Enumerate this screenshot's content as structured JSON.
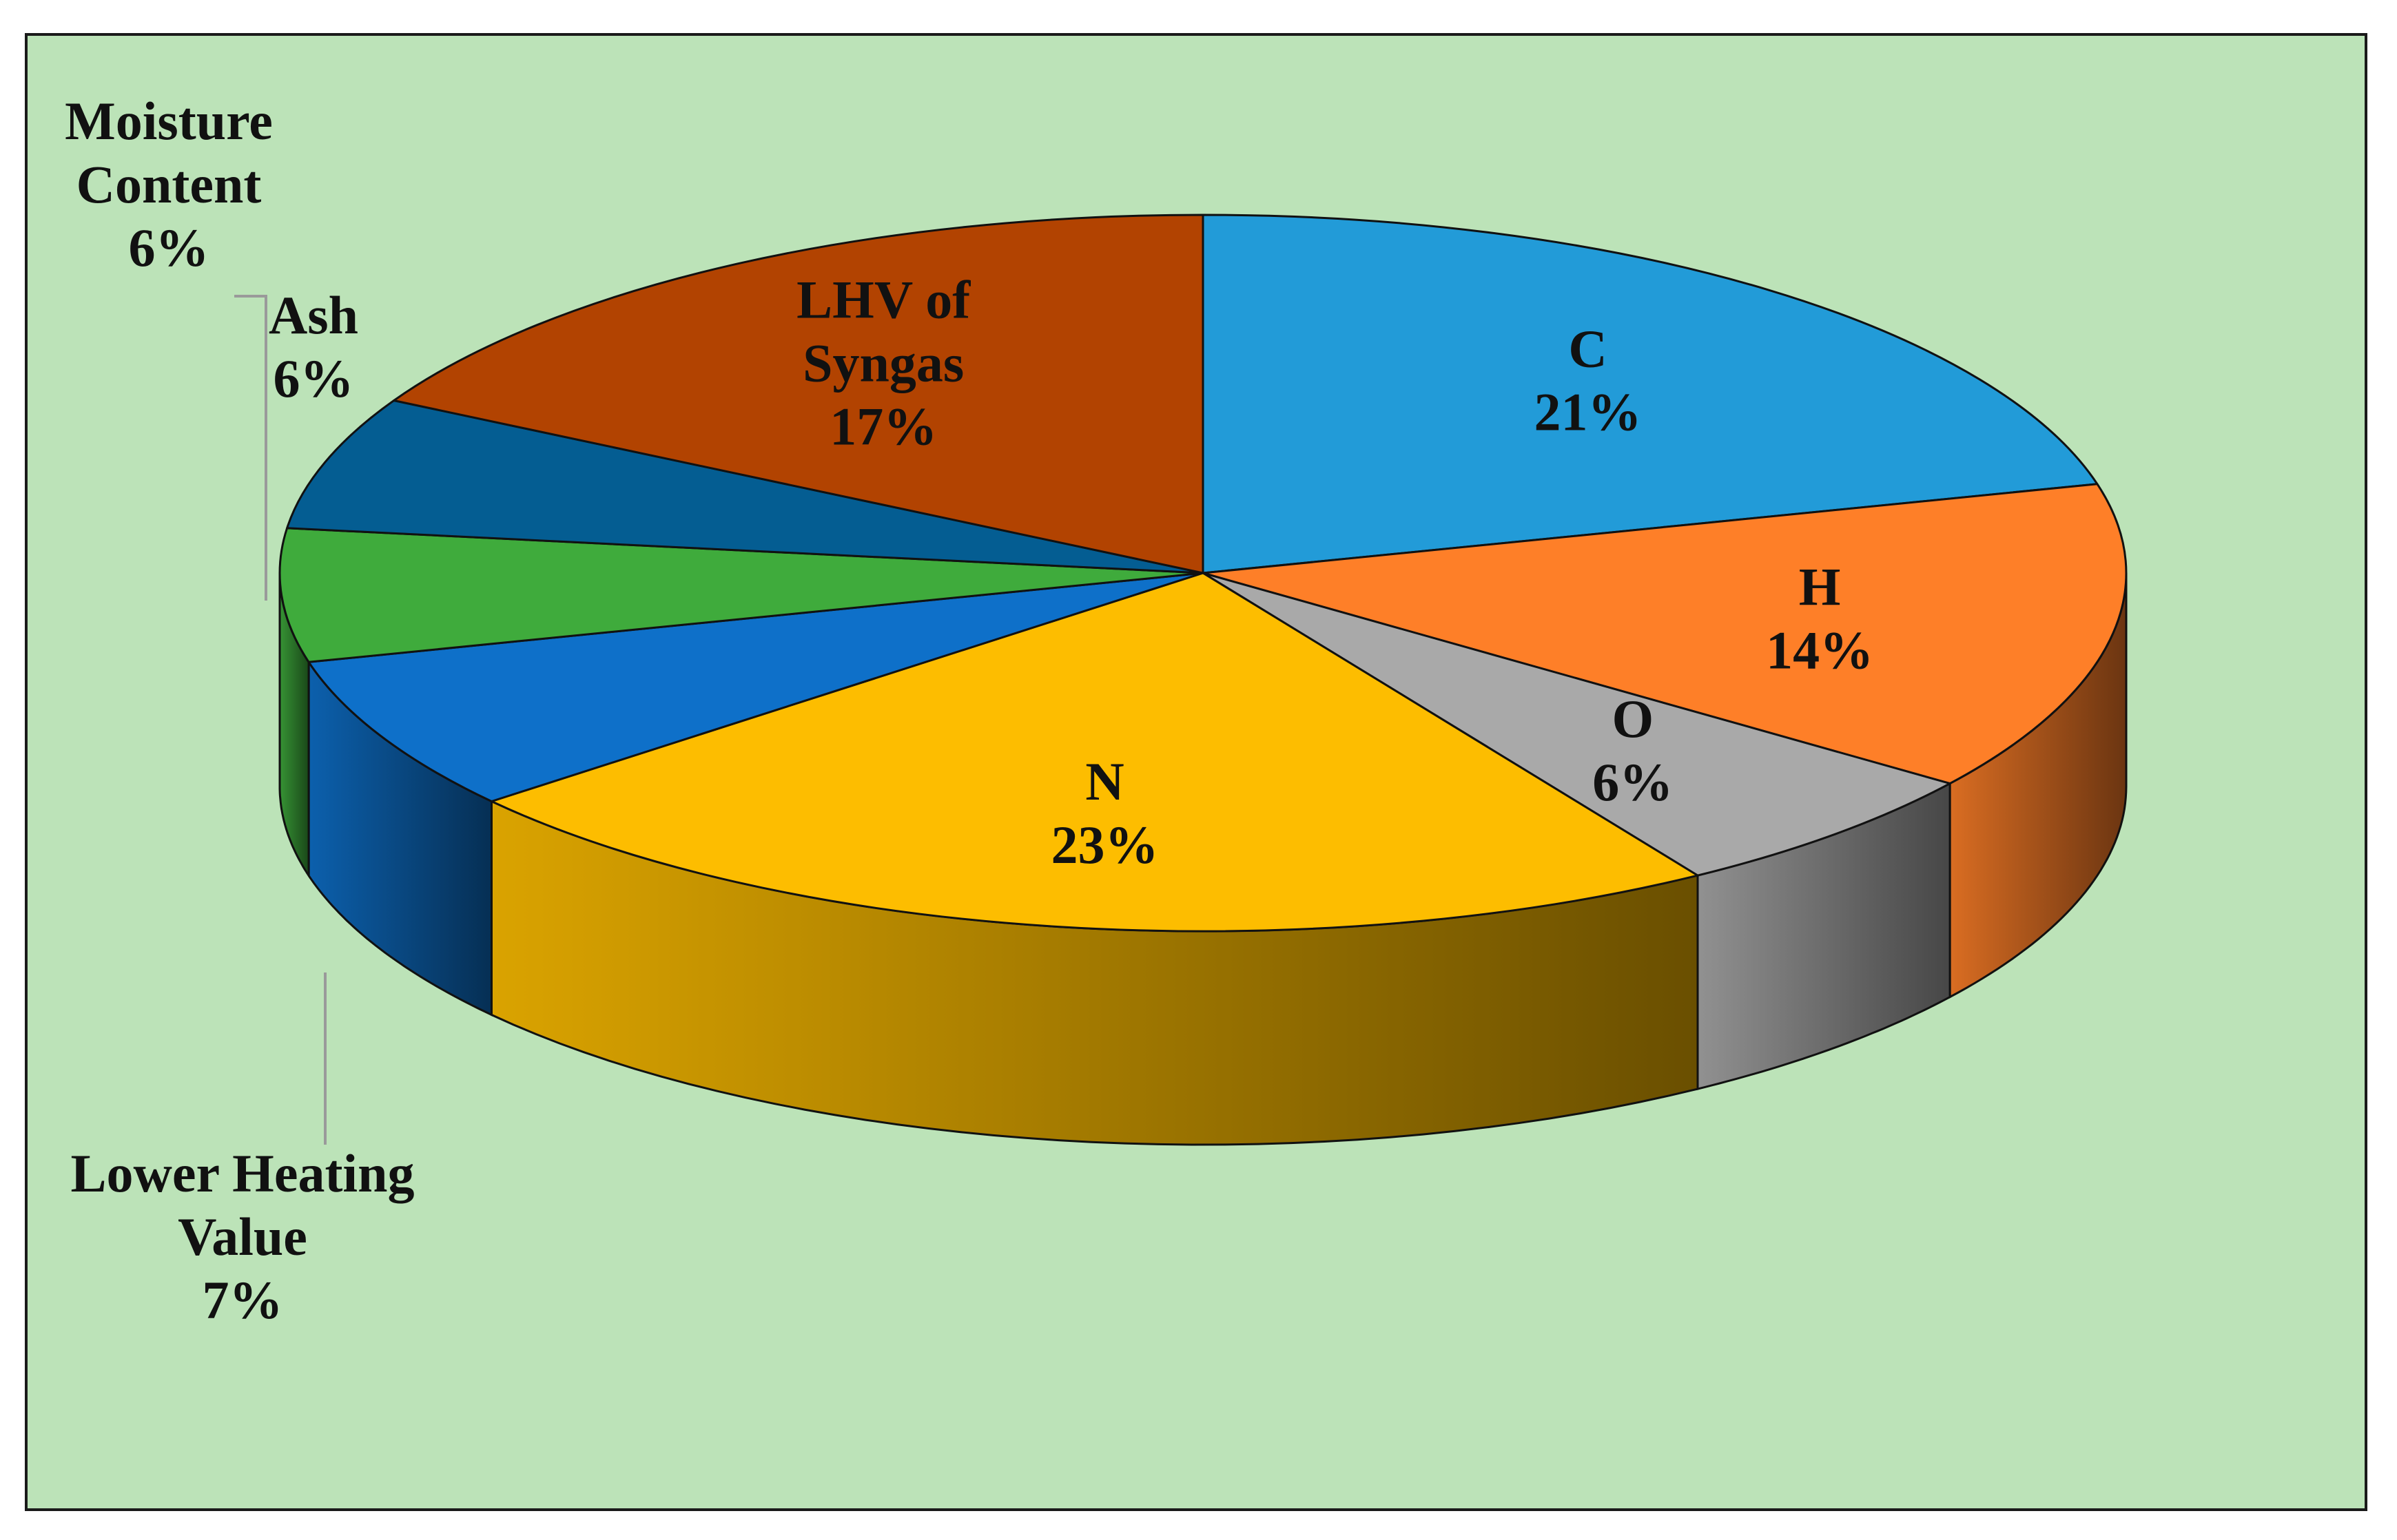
{
  "chart_data": {
    "type": "pie",
    "style": "3d",
    "title": "",
    "legend": "none",
    "categories": [
      "C",
      "H",
      "O",
      "N",
      "Lower Heating Value",
      "Moisture Content",
      "Ash",
      "LHV of Syngas"
    ],
    "values": [
      21,
      14,
      6,
      23,
      7,
      6,
      6,
      17
    ],
    "slices": [
      {
        "name": "C",
        "value": 21,
        "label_lines": [
          "C",
          "21%"
        ],
        "color": "#229bd8"
      },
      {
        "name": "H",
        "value": 14,
        "label_lines": [
          "H",
          "14%"
        ],
        "color": "#fe7f28"
      },
      {
        "name": "O",
        "value": 6,
        "label_lines": [
          "O",
          "6%"
        ],
        "color": "#a9a9a9"
      },
      {
        "name": "N",
        "value": 23,
        "label_lines": [
          "N",
          "23%"
        ],
        "color": "#fdbd00"
      },
      {
        "name": "Lower Heating Value",
        "value": 7,
        "label_lines": [
          "Lower Heating",
          "Value",
          "7%"
        ],
        "color": "#0e70c9"
      },
      {
        "name": "Moisture Content",
        "value": 6,
        "label_lines": [
          "Moisture",
          "Content",
          "6%"
        ],
        "color": "#3fab3c"
      },
      {
        "name": "Ash",
        "value": 6,
        "label_lines": [
          "Ash",
          "6%"
        ],
        "color": "#045d92"
      },
      {
        "name": "LHV of Syngas",
        "value": 17,
        "label_lines": [
          "LHV of",
          "Syngas",
          "17%"
        ],
        "color": "#b24301"
      }
    ],
    "background_color": "#bce3b8"
  }
}
